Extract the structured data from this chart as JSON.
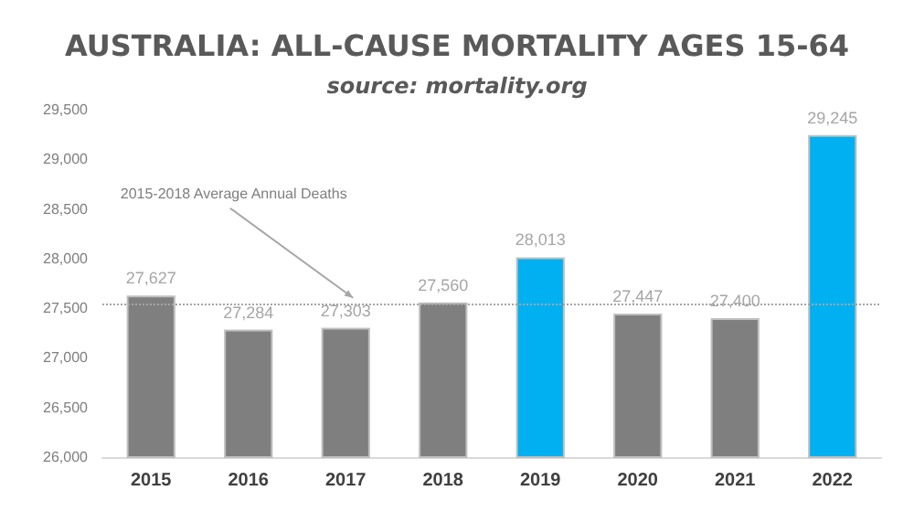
{
  "chart_data": {
    "type": "bar",
    "title": "AUSTRALIA: ALL-CAUSE MORTALITY AGES 15-64",
    "subtitle": "source: mortality.org",
    "categories": [
      "2015",
      "2016",
      "2017",
      "2018",
      "2019",
      "2020",
      "2021",
      "2022"
    ],
    "values": [
      27627,
      27284,
      27303,
      27560,
      28013,
      27447,
      27400,
      29245
    ],
    "value_labels": [
      "27,627",
      "27,284",
      "27,303",
      "27,560",
      "28,013",
      "27,447",
      "27,400",
      "29,245"
    ],
    "colors": [
      "#7f7f7f",
      "#7f7f7f",
      "#7f7f7f",
      "#7f7f7f",
      "#00b0f0",
      "#7f7f7f",
      "#7f7f7f",
      "#00b0f0"
    ],
    "ylim": [
      26000,
      29500
    ],
    "yticks": [
      {
        "value": 26000,
        "label": "26,000"
      },
      {
        "value": 26500,
        "label": "26,500"
      },
      {
        "value": 27000,
        "label": "27,000"
      },
      {
        "value": 27500,
        "label": "27,500"
      },
      {
        "value": 28000,
        "label": "28,000"
      },
      {
        "value": 28500,
        "label": "28,500"
      },
      {
        "value": 29000,
        "label": "29,000"
      },
      {
        "value": 29500,
        "label": "29,500"
      }
    ],
    "ref_lines": [
      {
        "axis": "y",
        "value": 27550,
        "label": "2015-2018 Average Annual Deaths",
        "color": "#a6a6a6",
        "line_style": "dotted"
      }
    ],
    "grid": false
  }
}
